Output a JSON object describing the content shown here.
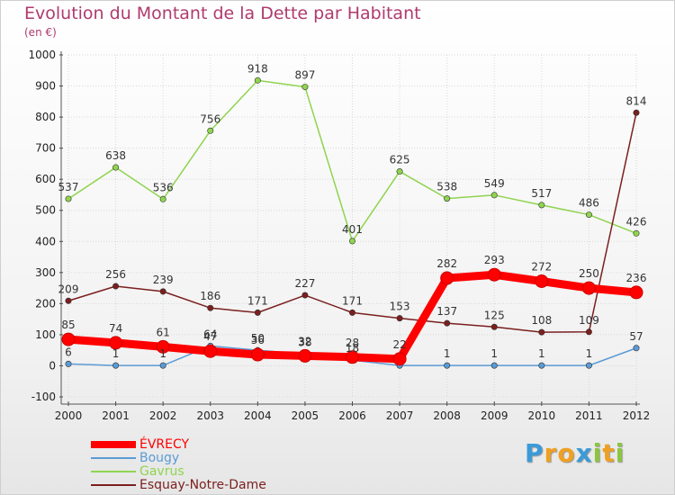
{
  "chart_data": {
    "type": "line",
    "title": "Evolution du Montant de la Dette par Habitant",
    "subtitle": "(en €)",
    "xlabel": "",
    "ylabel": "",
    "x": [
      "2000",
      "2001",
      "2002",
      "2003",
      "2004",
      "2005",
      "2006",
      "2007",
      "2008",
      "2009",
      "2010",
      "2011",
      "2012"
    ],
    "ylim": [
      -100,
      1000
    ],
    "yticks": [
      "-100",
      "0",
      "100",
      "200",
      "300",
      "400",
      "500",
      "600",
      "700",
      "800",
      "900",
      "1000"
    ],
    "grid": true,
    "legend_position": "bottom-left",
    "series": [
      {
        "name": "ÉVRECY",
        "color": "#ff0000",
        "values": [
          85,
          74,
          61,
          47,
          36,
          32,
          28,
          22,
          282,
          293,
          272,
          250,
          236
        ],
        "labels": [
          "85",
          "74",
          "61",
          "47",
          "36",
          "32",
          "28",
          "22",
          "282",
          "293",
          "272",
          "250",
          "236"
        ]
      },
      {
        "name": "Bougy",
        "color": "#5b9bd5",
        "values": [
          6,
          1,
          1,
          64,
          50,
          38,
          18,
          1,
          1,
          1,
          1,
          1,
          57
        ],
        "labels": [
          "6",
          "1",
          "1",
          "64",
          "50",
          "38",
          "18",
          "",
          "1",
          "1",
          "1",
          "1",
          "57"
        ]
      },
      {
        "name": "Gavrus",
        "color": "#8fd44f",
        "values": [
          537,
          638,
          536,
          756,
          918,
          897,
          401,
          625,
          538,
          549,
          517,
          486,
          426
        ],
        "labels": [
          "537",
          "638",
          "536",
          "756",
          "918",
          "897",
          "401",
          "625",
          "538",
          "549",
          "517",
          "486",
          "426"
        ]
      },
      {
        "name": "Esquay-Notre-Dame",
        "color": "#7b1f1f",
        "values": [
          209,
          256,
          239,
          186,
          171,
          227,
          171,
          153,
          137,
          125,
          108,
          109,
          814
        ],
        "labels": [
          "209",
          "256",
          "239",
          "186",
          "171",
          "227",
          "171",
          "153",
          "137",
          "125",
          "108",
          "109",
          "814"
        ]
      }
    ]
  },
  "logo": {
    "letters": [
      "P",
      "r",
      "o",
      "x",
      "i",
      "t",
      "i"
    ],
    "colors": [
      "#3a9bd8",
      "#f0a020",
      "#f0a020",
      "#3a9bd8",
      "#8cc63f",
      "#f0a020",
      "#8cc63f"
    ]
  }
}
